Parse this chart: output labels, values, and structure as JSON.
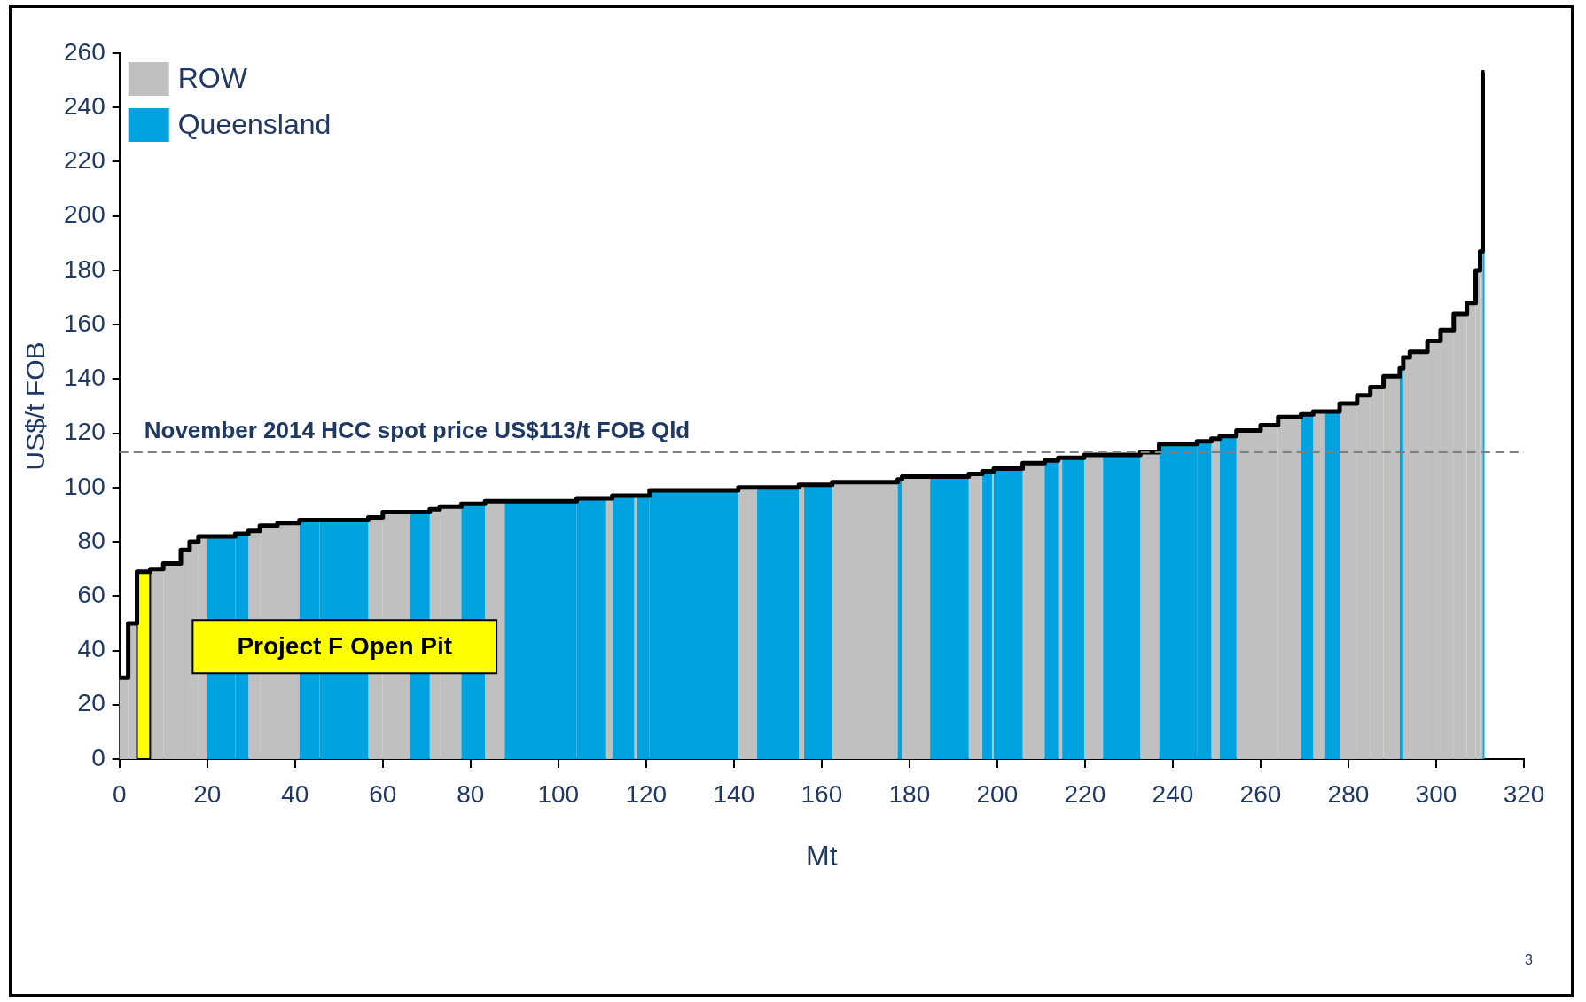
{
  "chart_data": {
    "type": "histogram",
    "xlabel": "Mt",
    "ylabel": "US$/t FOB",
    "bins": [
      0,
      2,
      4,
      7,
      10,
      14,
      16,
      18,
      20,
      26.4,
      29.4,
      32,
      36,
      41,
      45.6,
      56.7,
      60,
      66.2,
      70.7,
      73,
      77.9,
      83.3,
      87.8,
      104.2,
      110.9,
      112.3,
      117.3,
      118,
      120.8,
      141,
      145.3,
      154.8,
      156,
      162.4,
      177.3,
      178.3,
      184.7,
      193.5,
      196.6,
      198.8,
      199.2,
      205.8,
      210.8,
      213.9,
      214.8,
      219.8,
      224.1,
      232.6,
      236.9,
      245.5,
      248.8,
      250.7,
      254.5,
      260,
      264,
      269.2,
      272,
      274.7,
      278,
      282,
      285,
      288,
      291.7,
      292.5,
      294,
      298,
      301,
      304,
      307,
      309,
      310,
      310.6,
      311
    ],
    "series": [
      {
        "name": "ROW",
        "color": "#c0c0c0",
        "values": [
          30,
          50,
          null,
          70,
          72,
          77,
          80,
          82,
          null,
          null,
          84,
          86,
          87,
          null,
          null,
          89,
          91,
          null,
          92,
          93,
          null,
          95,
          null,
          null,
          96,
          null,
          97,
          null,
          null,
          100,
          null,
          101,
          null,
          102,
          null,
          104,
          null,
          105,
          null,
          106,
          null,
          109,
          null,
          111,
          null,
          112,
          null,
          113,
          null,
          null,
          118,
          null,
          121,
          123,
          126,
          null,
          128,
          null,
          131,
          134,
          137,
          141,
          null,
          148,
          150,
          154,
          158,
          164,
          168,
          180,
          187,
          null
        ]
      },
      {
        "name": "Queensland",
        "color": "#00a2e0",
        "values": [
          null,
          null,
          null,
          null,
          null,
          null,
          null,
          null,
          82,
          83,
          null,
          null,
          null,
          88,
          88,
          null,
          null,
          91,
          null,
          null,
          94,
          null,
          95,
          96,
          null,
          97,
          null,
          97,
          99,
          null,
          100,
          null,
          101,
          null,
          103,
          null,
          104,
          null,
          106,
          null,
          107,
          null,
          110,
          null,
          111,
          null,
          112,
          null,
          116,
          117,
          null,
          119,
          null,
          null,
          null,
          127,
          null,
          128,
          null,
          null,
          null,
          null,
          144,
          null,
          null,
          null,
          null,
          null,
          null,
          null,
          null,
          253
        ]
      },
      {
        "name": "Project F Open Pit",
        "color": "#ffff00",
        "values": [
          null,
          null,
          69,
          null,
          null,
          null,
          null,
          null,
          null,
          null,
          null,
          null,
          null,
          null,
          null,
          null,
          null,
          null,
          null,
          null,
          null,
          null,
          null,
          null,
          null,
          null,
          null,
          null,
          null,
          null,
          null,
          null,
          null,
          null,
          null,
          null,
          null,
          null,
          null,
          null,
          null,
          null,
          null,
          null,
          null,
          null,
          null,
          null,
          null,
          null,
          null,
          null,
          null,
          null,
          null,
          null,
          null,
          null,
          null,
          null,
          null,
          null,
          null,
          null,
          null,
          null,
          null,
          null,
          null,
          null,
          null,
          null
        ]
      },
      {
        "type": "step",
        "color": "#000000",
        "x": [
          0,
          2,
          4,
          7,
          10,
          14,
          16,
          18,
          20,
          26.4,
          29.4,
          32,
          36,
          41,
          45.6,
          56.7,
          60,
          66.2,
          70.7,
          73,
          77.9,
          83.3,
          87.8,
          104.2,
          110.9,
          112.3,
          117.3,
          118,
          120.8,
          141,
          145.3,
          154.8,
          156,
          162.4,
          177.3,
          178.3,
          184.7,
          193.5,
          196.6,
          198.8,
          199.2,
          205.8,
          210.8,
          213.9,
          214.8,
          219.8,
          224.1,
          232.6,
          236.9,
          245.5,
          248.8,
          250.7,
          254.5,
          260,
          264,
          269.2,
          272,
          274.7,
          278,
          282,
          285,
          288,
          291.7,
          292.5,
          294,
          298,
          301,
          304,
          307,
          309,
          310,
          310.6,
          311
        ],
        "values": [
          30,
          50,
          69,
          70,
          72,
          77,
          80,
          82,
          82,
          83,
          84,
          86,
          87,
          88,
          88,
          89,
          91,
          91,
          92,
          93,
          94,
          95,
          95,
          96,
          96,
          97,
          97,
          97,
          99,
          100,
          100,
          101,
          101,
          102,
          103,
          104,
          104,
          105,
          106,
          106,
          107,
          109,
          110,
          111,
          111,
          112,
          112,
          113,
          116,
          117,
          118,
          119,
          121,
          123,
          126,
          127,
          128,
          128,
          131,
          134,
          137,
          141,
          144,
          148,
          150,
          154,
          158,
          164,
          168,
          180,
          187,
          253,
          253
        ]
      }
    ],
    "xlim": [
      0,
      320
    ],
    "xticks": [
      0,
      20,
      40,
      60,
      80,
      100,
      120,
      140,
      160,
      180,
      200,
      220,
      240,
      260,
      280,
      300,
      320
    ],
    "ylim": [
      0,
      260
    ],
    "yticks": [
      0,
      20,
      40,
      60,
      80,
      100,
      120,
      140,
      160,
      180,
      200,
      220,
      240,
      260
    ],
    "grid": false,
    "legend": "top left",
    "ref_lines": [
      {
        "axis": "y",
        "value": 113,
        "label": "November 2014 HCC spot price US$113/t FOB Qld",
        "color": "#7f7f7f",
        "line_style": "dashed"
      }
    ],
    "annotations": [
      "3"
    ]
  }
}
